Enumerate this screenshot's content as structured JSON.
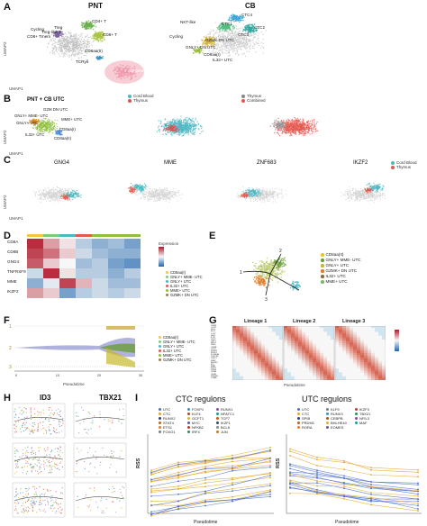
{
  "panels": {
    "A": {
      "label": "A",
      "left_title": "PNT",
      "right_title": "CB",
      "clusters_left": [
        "CD4+ T",
        "CD8+ T",
        "Treg",
        "Treg-like T",
        "CD8+ Tmem",
        "CD8aa(II)",
        "TCRyδ",
        "T cell precursors",
        "Cycling"
      ],
      "clusters_right": [
        "CTC4",
        "CTC1",
        "CTC2",
        "CTC3",
        "NKT-like",
        "Cycling",
        "GZMK DN UTC",
        "GNLY+ DN UTC",
        "CD8aa(I)",
        "IL32+ UTC"
      ],
      "axis_y": "UMAP2",
      "axis_x": "UMAP1"
    },
    "B": {
      "label": "B",
      "title": "PNT + CB UTC",
      "clusters": [
        "G2M DN UTC",
        "GNLY+ MME- UTC",
        "GNLY+ UTC",
        "MME+ UTC",
        "CD8aa(I)",
        "IL32+ UTC",
        "CD8aa(II)"
      ],
      "legend_mid": [
        "Cord Blood",
        "Thymus"
      ],
      "legend_right": [
        "Thymus",
        "Combined"
      ],
      "legend_mid_colors": [
        "#4cb8c4",
        "#d9534f"
      ],
      "legend_right_colors": [
        "#888888",
        "#e5584f"
      ],
      "axis_y": "UMAP2",
      "axis_x": "UMAP1"
    },
    "C": {
      "label": "C",
      "genes": [
        "GNG4",
        "MME",
        "ZNF683",
        "IKZF2"
      ],
      "legend": [
        "Cord Blood",
        "Thymus"
      ],
      "axis_y": "UMAP2",
      "axis_x": "UMAP1"
    },
    "D": {
      "label": "D",
      "rows": [
        "CD8A",
        "CD8B",
        "GNG4",
        "TNFRSF9",
        "MME",
        "IKZF2"
      ],
      "legend_title": "Expression",
      "legend_items": [
        "CD8aa(I)",
        "GNLY+ MME- UTC",
        "GNLY+ UTC",
        "IL32+ UTC",
        "MME+ UTC",
        "GZMK+ DN UTC"
      ]
    },
    "E": {
      "label": "E",
      "legend": [
        "CD8aa(II)",
        "GNLY+ MME- UTC",
        "GNLY+ UTC",
        "GZMK+ DN UTC",
        "IL32+ UTC",
        "MME+ UTC"
      ],
      "legend_colors": [
        "#f0c419",
        "#6a9e3a",
        "#c6b82a",
        "#e07b27",
        "#8a6d3b",
        "#7bb86e"
      ],
      "lineage_marks": [
        "1",
        "2",
        "3"
      ]
    },
    "F": {
      "label": "F",
      "xlabel": "Pseudotime",
      "ticks": [
        "0",
        "10",
        "20",
        "30"
      ],
      "side_labels": [
        "1",
        "2",
        "3"
      ],
      "legend": [
        "CD8aa(I)",
        "GNLY+ MME- UTC",
        "GNLY+ UTC",
        "IL32+ UTC",
        "MME+ UTC",
        "GZMK+ DN UTC"
      ]
    },
    "G": {
      "label": "G",
      "lineages": [
        "Lineage 1",
        "Lineage 2",
        "Lineage 3"
      ],
      "xlabel": "Pseudotime",
      "genes": [
        "GZMK",
        "CCR7",
        "SELL",
        "KLF2",
        "TCF7",
        "LEF1",
        "IL7R",
        "CD27",
        "GNLY",
        "NKG7",
        "PRF1",
        "GZMB",
        "CCL5",
        "KLRB1",
        "KLRD1",
        "FCGR3A",
        "CX3CR1",
        "TBX21",
        "ZEB2",
        "RUNX3",
        "ID2",
        "MME",
        "IKZF2",
        "GNG4",
        "CD8A",
        "CD8B",
        "ZNF683",
        "ITGAE"
      ]
    },
    "H": {
      "label": "H",
      "genes": [
        "ID3",
        "TBX21"
      ],
      "ylabel": "Expression",
      "xlabel": "Pseudotime"
    },
    "I": {
      "label": "I",
      "left": {
        "title": "CTC regulons",
        "ylabel": "RSS",
        "xlabel": "Pseudotime",
        "legend": [
          "UTC",
          "CTC",
          "RUNX2",
          "STAT4",
          "ETS1",
          "FOXO1",
          "FOXP1",
          "KLF4",
          "GCFT1",
          "MYC",
          "NFKB2",
          "IRF4",
          "RUNX1",
          "NFATC1",
          "TCF7",
          "IKZF1",
          "BCL6",
          "JUN"
        ]
      },
      "right": {
        "title": "UTC regulons",
        "ylabel": "RSS",
        "xlabel": "Pseudotime",
        "legend": [
          "UTC",
          "CTC",
          "SPIB",
          "PRDM1",
          "RORA",
          "KLF9",
          "RUNX3",
          "CEBPB",
          "BHLHE40",
          "EOMES",
          "IKZF3",
          "TBX21",
          "NFIL3",
          "MAF"
        ]
      }
    }
  },
  "colors": {
    "utc_lines": "#4a6fc8",
    "ctc_lines": "#e5a42a",
    "heatmap_high": "#d6604d",
    "heatmap_low": "#4393c3",
    "cord_blood": "#4cb8c4",
    "thymus": "#e5584f"
  }
}
